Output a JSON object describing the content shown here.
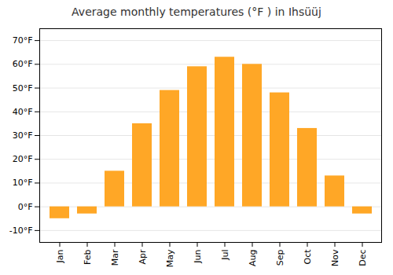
{
  "chart_data": {
    "type": "bar",
    "title": "Average monthly temperatures (°F ) in Ihsüüj",
    "categories": [
      "Jan",
      "Feb",
      "Mar",
      "Apr",
      "May",
      "Jun",
      "Jul",
      "Aug",
      "Sep",
      "Oct",
      "Nov",
      "Dec"
    ],
    "values": [
      -5,
      -3,
      15,
      35,
      49,
      59,
      63,
      60,
      48,
      33,
      13,
      -3
    ],
    "color": "#FFA726",
    "ylim": [
      -15,
      75
    ],
    "yticks": [
      {
        "value": -10,
        "label": "-10°F"
      },
      {
        "value": 0,
        "label": "0°F"
      },
      {
        "value": 10,
        "label": "10°F"
      },
      {
        "value": 20,
        "label": "20°F"
      },
      {
        "value": 30,
        "label": "30°F"
      },
      {
        "value": 40,
        "label": "40°F"
      },
      {
        "value": 50,
        "label": "50°F"
      },
      {
        "value": 60,
        "label": "60°F"
      },
      {
        "value": 70,
        "label": "70°F"
      }
    ],
    "grid": true
  }
}
